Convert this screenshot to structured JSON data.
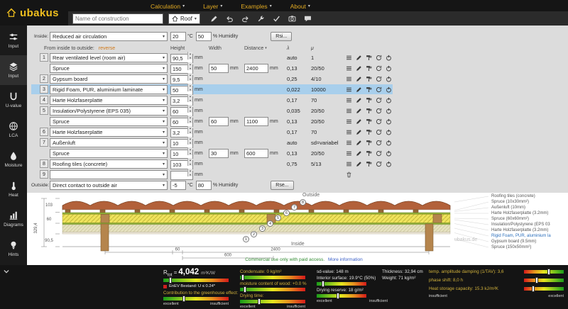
{
  "app": {
    "logo_text": "ubakus",
    "watermark": "ubakus.de"
  },
  "menubar": {
    "items": [
      "Calculation",
      "Layer",
      "Examples",
      "About"
    ]
  },
  "toolbar": {
    "name_input_placeholder": "Name of construction",
    "construction_type": "Roof",
    "icons": [
      "edit-icon",
      "undo-icon",
      "redo-icon",
      "wrench-icon",
      "check-icon",
      "camera-icon",
      "chat-icon"
    ]
  },
  "sidebar": {
    "items": [
      {
        "label": "Input",
        "icon": "sliders-icon"
      },
      {
        "label": "Input",
        "icon": "layers-icon"
      },
      {
        "label": "U-value",
        "icon": "u-value-icon"
      },
      {
        "label": "LCA",
        "icon": "globe-icon"
      },
      {
        "label": "Moisture",
        "icon": "droplet-icon"
      },
      {
        "label": "Heat",
        "icon": "thermometer-icon"
      },
      {
        "label": "Diagrams",
        "icon": "chart-icon"
      },
      {
        "label": "Hints",
        "icon": "hint-icon"
      }
    ]
  },
  "boundaries": {
    "inside": {
      "label": "Inside:",
      "condition": "Reduced air circulation",
      "temperature": "20",
      "temp_unit": "°C",
      "humidity": "50",
      "humidity_unit": "% Humidity",
      "surface_button": "Rsi..."
    },
    "outside": {
      "label": "Outside:",
      "condition": "Direct contact to outside air",
      "temperature": "-5",
      "temp_unit": "°C",
      "humidity": "80",
      "humidity_unit": "% Humidity",
      "surface_button": "Rse..."
    }
  },
  "layer_table": {
    "direction_label": "From inside to outside:",
    "reverse_link": "reverse",
    "columns": {
      "height": "Height",
      "width": "Width",
      "distance": "Distance",
      "lambda": "λ",
      "mu": "μ"
    },
    "unit": "mm",
    "row_icons": [
      "list-icon",
      "edit-icon",
      "paint-icon",
      "reset-icon",
      "power-icon"
    ],
    "empty_row_icon": "trash-icon",
    "rows": [
      {
        "num": "1",
        "kind": "main",
        "material": "Rear ventilated level (room air)",
        "height": "90,5",
        "width": "",
        "distance": "",
        "lambda": "auto",
        "mu": "1"
      },
      {
        "num": "",
        "kind": "sub",
        "material": "Spruce",
        "height": "150",
        "width": "50",
        "distance": "2400",
        "lambda": "0,13",
        "mu": "20/50"
      },
      {
        "num": "2",
        "kind": "main",
        "material": "Gypsum board",
        "height": "9,5",
        "width": "",
        "distance": "",
        "lambda": "0,25",
        "mu": "4/10"
      },
      {
        "num": "3",
        "kind": "main",
        "selected": true,
        "material": "Rigid Foam, PUR, aluminium laminate",
        "height": "50",
        "width": "",
        "distance": "",
        "lambda": "0,022",
        "mu": "10000"
      },
      {
        "num": "4",
        "kind": "main",
        "material": "Harte Holzfaserplatte",
        "height": "3,2",
        "width": "",
        "distance": "",
        "lambda": "0,17",
        "mu": "70"
      },
      {
        "num": "5",
        "kind": "main",
        "material": "Insulation/Polystyrene (EPS 035)",
        "height": "60",
        "width": "",
        "distance": "",
        "lambda": "0,035",
        "mu": "20/50"
      },
      {
        "num": "",
        "kind": "sub",
        "material": "Spruce",
        "height": "60",
        "width": "60",
        "distance": "1100",
        "lambda": "0,13",
        "mu": "20/50"
      },
      {
        "num": "6",
        "kind": "main",
        "material": "Harte Holzfaserplatte",
        "height": "3,2",
        "width": "",
        "distance": "",
        "lambda": "0,17",
        "mu": "70"
      },
      {
        "num": "7",
        "kind": "main",
        "material": "Außenluft",
        "height": "10",
        "width": "",
        "distance": "",
        "lambda": "auto",
        "mu": "sd=variabel"
      },
      {
        "num": "",
        "kind": "sub",
        "material": "Spruce",
        "height": "10",
        "width": "30",
        "distance": "600",
        "lambda": "0,13",
        "mu": "20/50"
      },
      {
        "num": "8",
        "kind": "main",
        "material": "Roofing tiles (concrete)",
        "height": "103",
        "width": "",
        "distance": "",
        "lambda": "0,75",
        "mu": "5/13"
      },
      {
        "num": "9",
        "kind": "empty",
        "material": "",
        "height": "",
        "width": "",
        "distance": "",
        "lambda": "",
        "mu": ""
      }
    ]
  },
  "canvas": {
    "outside_label": "Outside",
    "inside_label": "Inside",
    "dimensions": {
      "total": "329,4",
      "tiles": "103",
      "eps": "60",
      "vent": "90,5",
      "span": "2400",
      "batten": "600",
      "stud": "60"
    },
    "markers": [
      "1",
      "2",
      "3",
      "4",
      "5",
      "6",
      "7",
      "8"
    ],
    "layer_labels": [
      {
        "text": "Roofing tiles (concrete)"
      },
      {
        "text": "Spruce (10x30mm²)"
      },
      {
        "text": "Außenluft (10mm)"
      },
      {
        "text": "Harte Holzfaserplatte (3.2mm)"
      },
      {
        "text": "Spruce (60x60mm²)"
      },
      {
        "text": "Insulation/Polystyrene (EPS 03"
      },
      {
        "text": "Harte Holzfaserplatte (3.2mm)"
      },
      {
        "text": "Rigid Foam, PUR, aluminium la",
        "highlight": true
      },
      {
        "text": "Gypsum board (9.5mm)"
      },
      {
        "text": "Spruce (150x50mm²)"
      }
    ],
    "notice": {
      "text": "Commercial use only with paid access.",
      "link": "More information"
    }
  },
  "results": {
    "rtot": {
      "symbol": "R",
      "sub": "tot",
      "eq": "=",
      "value": "4,042",
      "unit": "m²K/W"
    },
    "enev": "EnEV Bestand: U ≤ 0.24*",
    "greenhouse": "Contribution to the greenhouse effect:",
    "condensate": "Condensate: 0 kg/m²",
    "wood_moisture": "moisture content of wood: +0.0 %",
    "drying_time": "Drying time:",
    "sd_value": "sd-value: 148 m",
    "interior_surface": "Interior surface: 19.9°C (50%)",
    "drying_reserve": "Drying reserve: 18 g/m²",
    "thickness": "Thickness: 32,94 cm",
    "weight": "Weight: 71 kg/m²",
    "amplitude": "temp. amplitude damping (1/TAV): 3,6",
    "phase_shift": "phase shift: 8,0 h",
    "heat_capacity": "Heat storage capacity: 15.3 kJ/m²K",
    "scale_left": "excellent",
    "scale_right": "insufficient",
    "markers": {
      "u_value": "10%",
      "greenhouse": "30%",
      "condensate": "3%",
      "wood_moisture": "6%",
      "drying_time": "28%",
      "interior_surface": "12%",
      "drying_reserve": "42%",
      "amplitude": "60%",
      "phase_shift": "30%",
      "heat_capacity": "22%"
    }
  }
}
